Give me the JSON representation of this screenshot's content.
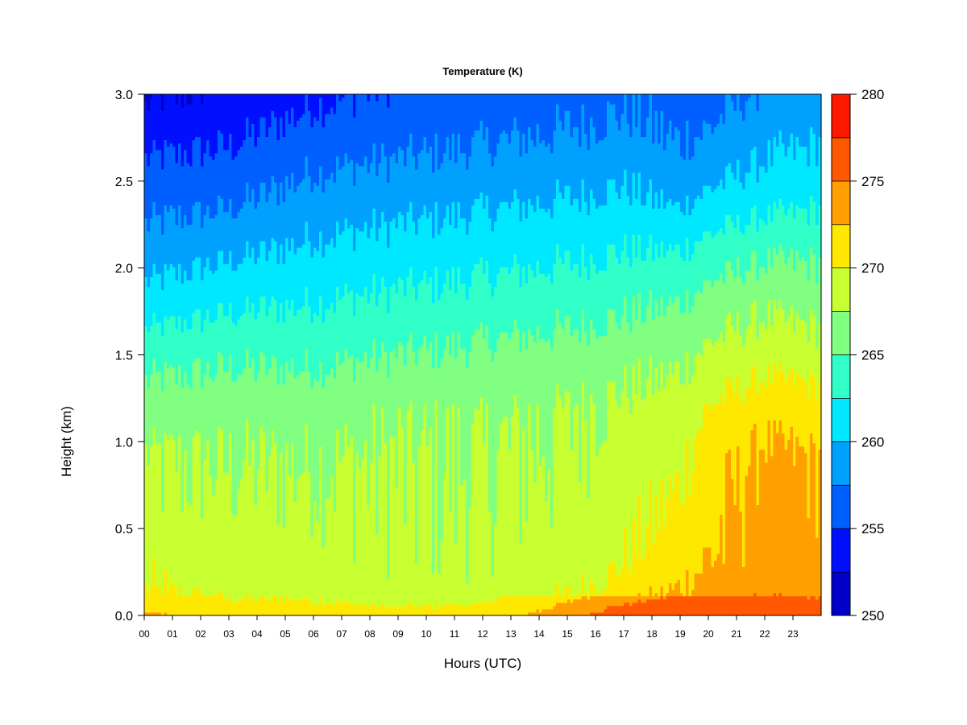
{
  "chart_data": {
    "type": "heatmap",
    "title": "Temperature (K)",
    "xlabel": "Hours (UTC)",
    "ylabel": "Height (km)",
    "x_tick_labels": [
      "00",
      "01",
      "02",
      "03",
      "04",
      "05",
      "06",
      "07",
      "08",
      "09",
      "10",
      "11",
      "12",
      "13",
      "14",
      "15",
      "16",
      "17",
      "18",
      "19",
      "20",
      "21",
      "22",
      "23"
    ],
    "y_tick_labels": [
      "0.0",
      "0.5",
      "1.0",
      "1.5",
      "2.0",
      "2.5",
      "3.0"
    ],
    "xlim": [
      0,
      24
    ],
    "ylim": [
      0,
      3.0
    ],
    "colorbar": {
      "levels": [
        250,
        252.5,
        255,
        257.5,
        260,
        262.5,
        265,
        267.5,
        270,
        272.5,
        275,
        277.5,
        280
      ],
      "tick_labels": [
        "250",
        "255",
        "260",
        "265",
        "270",
        "275",
        "280"
      ],
      "colors": [
        "#000080",
        "#0000c8",
        "#0010ff",
        "#0060ff",
        "#00a0ff",
        "#00e8ff",
        "#30ffc8",
        "#80ff80",
        "#c8ff30",
        "#ffe800",
        "#ffa000",
        "#ff5800",
        "#ff1800",
        "#c00000",
        "#800000"
      ]
    },
    "profiles": [
      {
        "hour": 0,
        "height": [
          0.0,
          0.05,
          0.1,
          0.3,
          0.6,
          0.9,
          1.2,
          1.5,
          1.8,
          2.1,
          2.4,
          2.7,
          3.0
        ],
        "temperature": [
          273,
          271,
          270,
          269.5,
          268,
          267.8,
          266,
          264,
          261,
          258.5,
          256.5,
          254.5,
          252
        ]
      },
      {
        "hour": 3,
        "height": [
          0.0,
          0.05,
          0.1,
          0.3,
          0.6,
          0.9,
          1.2,
          1.5,
          1.8,
          2.1,
          2.4,
          2.7,
          3.0
        ],
        "temperature": [
          271,
          270,
          269.5,
          268.5,
          268,
          267.5,
          266.5,
          264.5,
          262,
          259.5,
          257,
          255,
          253
        ]
      },
      {
        "hour": 6,
        "height": [
          0.0,
          0.05,
          0.1,
          0.3,
          0.6,
          0.9,
          1.2,
          1.5,
          1.8,
          2.1,
          2.4,
          2.7,
          3.0
        ],
        "temperature": [
          270.5,
          270,
          269,
          268.5,
          268,
          267.5,
          266.5,
          264.5,
          262.5,
          260.5,
          258.5,
          256.5,
          254.5
        ]
      },
      {
        "hour": 9,
        "height": [
          0.0,
          0.05,
          0.1,
          0.3,
          0.6,
          0.9,
          1.2,
          1.5,
          1.8,
          2.1,
          2.4,
          2.7,
          3.0
        ],
        "temperature": [
          270.5,
          269.5,
          268.5,
          268,
          267.8,
          267.5,
          267,
          265,
          263,
          261,
          259,
          257,
          255.5
        ]
      },
      {
        "hour": 12,
        "height": [
          0.0,
          0.05,
          0.1,
          0.3,
          0.6,
          0.9,
          1.2,
          1.5,
          1.8,
          2.1,
          2.4,
          2.7,
          3.0
        ],
        "temperature": [
          271,
          269.5,
          268.5,
          268,
          267.8,
          267.5,
          267,
          265.5,
          263.5,
          261.5,
          259.5,
          257.5,
          256
        ]
      },
      {
        "hour": 15,
        "height": [
          0.0,
          0.05,
          0.1,
          0.3,
          0.6,
          0.9,
          1.2,
          1.5,
          1.8,
          2.1,
          2.4,
          2.7,
          3.0
        ],
        "temperature": [
          274,
          272,
          270,
          268.5,
          268,
          267.8,
          267.5,
          266,
          264,
          262,
          260,
          258,
          256.5
        ]
      },
      {
        "hour": 17,
        "height": [
          0.0,
          0.05,
          0.1,
          0.3,
          0.6,
          0.9,
          1.2,
          1.5,
          1.8,
          2.1,
          2.4,
          2.7,
          3.0
        ],
        "temperature": [
          277,
          274,
          271.5,
          270,
          269,
          268.5,
          268,
          266.5,
          264.5,
          262.5,
          260.5,
          258.5,
          257
        ]
      },
      {
        "hour": 19,
        "height": [
          0.0,
          0.05,
          0.1,
          0.3,
          0.6,
          0.9,
          1.2,
          1.5,
          1.8,
          2.1,
          2.4,
          2.7,
          3.0
        ],
        "temperature": [
          277.5,
          275.5,
          273,
          271.5,
          270.5,
          269.5,
          268.5,
          267,
          265,
          262.5,
          259.5,
          257.5,
          256.5
        ]
      },
      {
        "hour": 20,
        "height": [
          0.0,
          0.05,
          0.1,
          0.3,
          0.6,
          0.9,
          1.2,
          1.5,
          1.8,
          2.1,
          2.4,
          2.7,
          3.0
        ],
        "temperature": [
          277.5,
          276,
          274,
          272.5,
          272,
          271.5,
          270,
          268,
          266,
          263.5,
          260.5,
          258,
          256.5
        ]
      },
      {
        "hour": 22,
        "height": [
          0.0,
          0.05,
          0.1,
          0.3,
          0.6,
          0.9,
          1.2,
          1.5,
          1.8,
          2.1,
          2.4,
          2.7,
          3.0
        ],
        "temperature": [
          277,
          275.5,
          274.5,
          273.5,
          273.5,
          273,
          271.5,
          269,
          267,
          264.5,
          261.5,
          259.5,
          258
        ]
      },
      {
        "hour": 24,
        "height": [
          0.0,
          0.05,
          0.1,
          0.3,
          0.6,
          0.9,
          1.2,
          1.5,
          1.8,
          2.1,
          2.4,
          2.7,
          3.0
        ],
        "temperature": [
          276.5,
          275,
          274,
          273.5,
          273,
          272.5,
          271,
          268.5,
          266.5,
          264.5,
          262,
          260,
          258.5
        ]
      }
    ]
  }
}
